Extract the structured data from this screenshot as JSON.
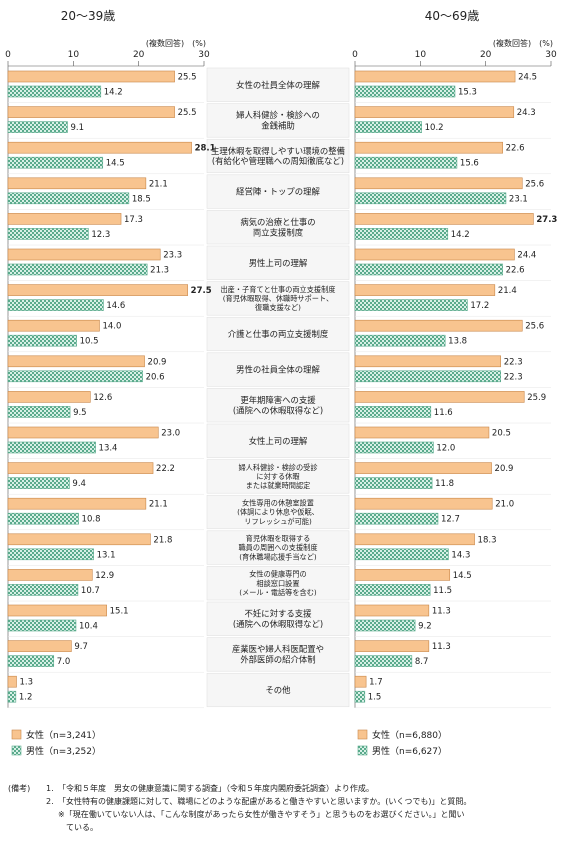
{
  "colors": {
    "female_fill": "#f8c48f",
    "female_stroke": "#c8874a",
    "male_fill": "#d7f0e6",
    "male_pattern": "#5aaa8c",
    "box_bg": "#f6f6f6"
  },
  "chart_data": {
    "type": "bar",
    "orientation": "horizontal",
    "xlim": [
      0,
      30
    ],
    "xticks": [
      "0",
      "10",
      "20",
      "30"
    ],
    "unit_label": "(複数回答)　(%)",
    "categories": [
      [
        "女性の社員全体の理解"
      ],
      [
        "婦人科健診・検診への",
        "金銭補助"
      ],
      [
        "生理休暇を取得しやすい環境の整備",
        "(有給化や管理職への周知徹底など)"
      ],
      [
        "経営陣・トップの理解"
      ],
      [
        "病気の治療と仕事の",
        "両立支援制度"
      ],
      [
        "男性上司の理解"
      ],
      [
        "出産・子育てと仕事の両立支援制度",
        "(育児休暇取得、休職時サポート、",
        "復職支援など)"
      ],
      [
        "介護と仕事の両立支援制度"
      ],
      [
        "男性の社員全体の理解"
      ],
      [
        "更年期障害への支援",
        "(通院への休暇取得など)"
      ],
      [
        "女性上司の理解"
      ],
      [
        "婦人科健診・検診の受診",
        "に対する休暇",
        "または就業時間認定"
      ],
      [
        "女性専用の休憩室設置",
        "(体調により休息や仮眠、",
        "リフレッシュが可能)"
      ],
      [
        "育児休暇を取得する",
        "職員の周囲への支援制度",
        "(育休職場応援手当など)"
      ],
      [
        "女性の健康専門の",
        "相談窓口設置",
        "(メール・電話等を含む)"
      ],
      [
        "不妊に対する支援",
        "(通院への休暇取得など)"
      ],
      [
        "産業医や婦人科医配置や",
        "外部医師の紹介体制"
      ],
      [
        "その他"
      ]
    ],
    "panels": [
      {
        "title": "20～39歳",
        "series": [
          {
            "name": "女性",
            "n_label": "女性（n=3,241）",
            "values": [
              "25.5",
              "25.5",
              "28.1",
              "21.1",
              "17.3",
              "23.3",
              "27.5",
              "14.0",
              "20.9",
              "12.6",
              "23.0",
              "22.2",
              "21.1",
              "21.8",
              "12.9",
              "15.1",
              "9.7",
              "1.3"
            ]
          },
          {
            "name": "男性",
            "n_label": "男性（n=3,252）",
            "values": [
              "14.2",
              "9.1",
              "14.5",
              "18.5",
              "12.3",
              "21.3",
              "14.6",
              "10.5",
              "20.6",
              "9.5",
              "13.4",
              "9.4",
              "10.8",
              "13.1",
              "10.7",
              "10.4",
              "7.0",
              "1.2"
            ]
          }
        ],
        "bold_values": [
          "28.1",
          "27.5"
        ]
      },
      {
        "title": "40～69歳",
        "series": [
          {
            "name": "女性",
            "n_label": "女性（n=6,880）",
            "values": [
              "24.5",
              "24.3",
              "22.6",
              "25.6",
              "27.3",
              "24.4",
              "21.4",
              "25.6",
              "22.3",
              "25.9",
              "20.5",
              "20.9",
              "21.0",
              "18.3",
              "14.5",
              "11.3",
              "11.3",
              "1.7"
            ]
          },
          {
            "name": "男性",
            "n_label": "男性（n=6,627）",
            "values": [
              "15.3",
              "10.2",
              "15.6",
              "23.1",
              "14.2",
              "22.6",
              "17.2",
              "13.8",
              "22.3",
              "11.6",
              "12.0",
              "11.8",
              "12.7",
              "14.3",
              "11.5",
              "9.2",
              "8.7",
              "1.5"
            ]
          }
        ],
        "bold_values": [
          "27.3"
        ]
      }
    ]
  },
  "notes": {
    "label": "(備考)",
    "items": [
      {
        "num": "1.",
        "text": "「令和５年度　男女の健康意識に関する調査」（令和５年度内閣府委託調査）より作成。"
      },
      {
        "num": "2.",
        "text": "「女性特有の健康課題に対して、職場にどのような配慮があると働きやすいと思いますか。(いくつでも)」と質問。"
      }
    ],
    "asterisk": "※「現在働いていない人は、「こんな制度があったら女性が働きやすそう」と思うものをお選びください。」と聞い",
    "asterisk_cont": "ている。"
  }
}
